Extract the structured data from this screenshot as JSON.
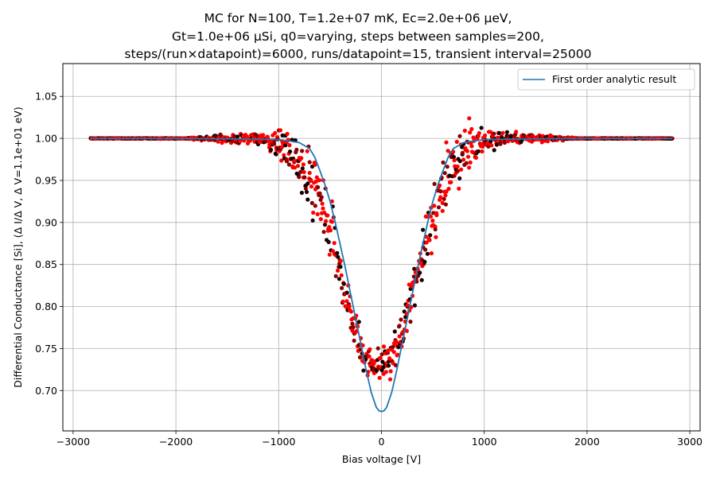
{
  "colors": {
    "analytic_line": "#1f77b4",
    "point_red": "#ff0000",
    "point_dark": "#1a0000",
    "grid": "#b0b0b0"
  },
  "chart_data": {
    "type": "scatter",
    "title_lines": [
      "MC for N=100, T=1.2e+07 mK, Ec=2.0e+06 μeV,",
      "Gt=1.0e+06 μSi, q0=varying, steps between samples=200,",
      "steps/(run×datapoint)=6000, runs/datapoint=15, transient interval=25000"
    ],
    "xlabel": "Bias voltage [V]",
    "ylabel": "Differential Conductance [Si], (Δ I/Δ V, Δ V=1.1e+01 eV)",
    "xlim": [
      -3100,
      3100
    ],
    "ylim": [
      0.652,
      1.089
    ],
    "xticks": [
      -3000,
      -2000,
      -1000,
      0,
      1000,
      2000,
      3000
    ],
    "xtick_labels": [
      "−3000",
      "−2000",
      "−1000",
      "0",
      "1000",
      "2000",
      "3000"
    ],
    "yticks": [
      0.7,
      0.75,
      0.8,
      0.85,
      0.9,
      0.95,
      1.0,
      1.05
    ],
    "ytick_labels": [
      "0.70",
      "0.75",
      "0.80",
      "0.85",
      "0.90",
      "0.95",
      "1.00",
      "1.05"
    ],
    "grid": true,
    "legend_position": "top-right",
    "legend": [
      "First order analytic result"
    ],
    "x_range": [
      -2830,
      2830
    ],
    "series": [
      {
        "name": "First order analytic result",
        "kind": "line",
        "x": [
          -2830,
          -2000,
          -1500,
          -1200,
          -1000,
          -900,
          -800,
          -700,
          -650,
          -600,
          -550,
          -500,
          -450,
          -400,
          -350,
          -300,
          -250,
          -200,
          -150,
          -100,
          -50,
          -25,
          0,
          25,
          50,
          100,
          150,
          200,
          250,
          300,
          350,
          400,
          450,
          500,
          550,
          600,
          650,
          700,
          800,
          900,
          1000,
          1200,
          1500,
          2000,
          2830
        ],
        "y": [
          1.0,
          1.0,
          0.9995,
          0.999,
          0.9985,
          0.997,
          0.995,
          0.988,
          0.978,
          0.962,
          0.945,
          0.925,
          0.9,
          0.873,
          0.845,
          0.815,
          0.785,
          0.755,
          0.725,
          0.698,
          0.68,
          0.676,
          0.675,
          0.676,
          0.68,
          0.698,
          0.725,
          0.755,
          0.785,
          0.815,
          0.845,
          0.873,
          0.9,
          0.925,
          0.945,
          0.962,
          0.978,
          0.988,
          0.995,
          0.997,
          0.9985,
          0.999,
          0.9995,
          1.0,
          1.0
        ]
      },
      {
        "name": "",
        "kind": "scatter",
        "note": "Monte Carlo samples; envelope around the analytic curve",
        "x": [
          -1150,
          -1100,
          -1050,
          -1000,
          -950,
          -900,
          -850,
          -800,
          -750,
          -700,
          -650,
          -600,
          -550,
          -500,
          -450,
          -400,
          -350,
          -300,
          -250,
          -200,
          -150,
          -100,
          -50,
          0,
          50,
          100,
          150,
          200,
          250,
          300,
          350,
          400,
          450,
          500,
          550,
          600,
          650,
          700,
          750,
          800,
          850,
          900,
          950,
          1000,
          1050,
          1100,
          1150
        ],
        "y_mean": [
          0.999,
          0.998,
          0.995,
          0.993,
          0.988,
          0.982,
          0.975,
          0.965,
          0.955,
          0.948,
          0.935,
          0.92,
          0.905,
          0.885,
          0.862,
          0.838,
          0.815,
          0.79,
          0.77,
          0.752,
          0.74,
          0.735,
          0.732,
          0.733,
          0.735,
          0.74,
          0.752,
          0.77,
          0.79,
          0.815,
          0.84,
          0.865,
          0.888,
          0.91,
          0.925,
          0.94,
          0.955,
          0.965,
          0.975,
          0.982,
          0.988,
          0.992,
          0.995,
          0.997,
          0.998,
          0.999,
          1.0
        ],
        "y_spread": [
          0.012,
          0.015,
          0.02,
          0.025,
          0.03,
          0.035,
          0.04,
          0.045,
          0.05,
          0.055,
          0.06,
          0.06,
          0.06,
          0.06,
          0.055,
          0.05,
          0.045,
          0.04,
          0.038,
          0.035,
          0.032,
          0.03,
          0.03,
          0.03,
          0.03,
          0.03,
          0.032,
          0.035,
          0.038,
          0.04,
          0.045,
          0.05,
          0.055,
          0.06,
          0.06,
          0.06,
          0.06,
          0.055,
          0.05,
          0.045,
          0.04,
          0.035,
          0.03,
          0.025,
          0.02,
          0.015,
          0.012
        ],
        "point_count_approx": 1200
      }
    ]
  }
}
